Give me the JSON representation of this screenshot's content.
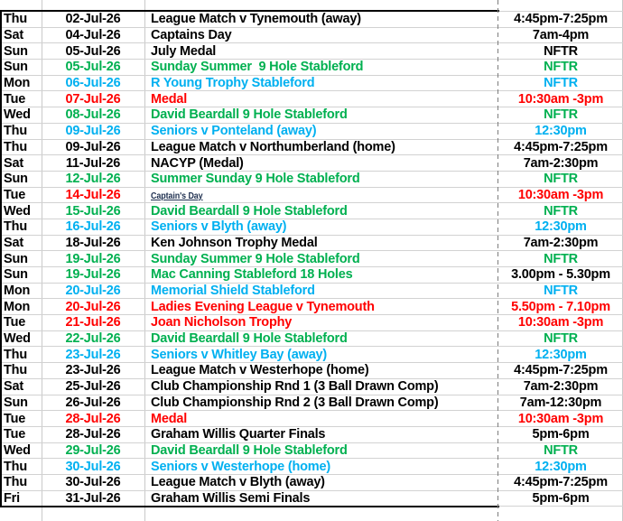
{
  "palette": {
    "black": "#000000",
    "green": "#00B050",
    "cyan": "#00B0F0",
    "red": "#FF0000",
    "link": "#1F3050"
  },
  "rows": [
    {
      "day": "Thu",
      "date": "02-Jul-26",
      "event": "League Match v Tynemouth (away)",
      "time": "4:45pm-7:25pm",
      "color": "black"
    },
    {
      "day": "Sat",
      "date": "04-Jul-26",
      "event": "Captains Day",
      "time": "7am-4pm",
      "color": "black"
    },
    {
      "day": "Sun",
      "date": "05-Jul-26",
      "event": "July Medal",
      "time": "NFTR",
      "color": "black"
    },
    {
      "day": "Sun",
      "date": "05-Jul-26",
      "event": "Sunday Summer  9 Hole Stableford",
      "time": "NFTR",
      "color": "green"
    },
    {
      "day": "Mon",
      "date": "06-Jul-26",
      "event": "R Young Trophy Stableford",
      "time": "NFTR",
      "color": "cyan"
    },
    {
      "day": "Tue",
      "date": "07-Jul-26",
      "event": "Medal",
      "time": "10:30am -3pm",
      "color": "red"
    },
    {
      "day": "Wed",
      "date": "08-Jul-26",
      "event": "David Beardall 9 Hole Stableford",
      "time": "NFTR",
      "color": "green"
    },
    {
      "day": "Thu",
      "date": "09-Jul-26",
      "event": "Seniors v Ponteland (away)",
      "time": "12:30pm",
      "color": "cyan"
    },
    {
      "day": "Thu",
      "date": "09-Jul-26",
      "event": "League Match v Northumberland (home)",
      "time": "4:45pm-7:25pm",
      "color": "black"
    },
    {
      "day": "Sat",
      "date": "11-Jul-26",
      "event": "NACYP (Medal)",
      "time": "7am-2:30pm",
      "color": "black"
    },
    {
      "day": "Sun",
      "date": "12-Jul-26",
      "event": "Summer Sunday 9 Hole Stableford",
      "time": "NFTR",
      "color": "green"
    },
    {
      "day": "Tue",
      "date": "14-Jul-26",
      "event": "Captain's Day",
      "time": "10:30am -3pm",
      "color": "red",
      "event_style": "link"
    },
    {
      "day": "Wed",
      "date": "15-Jul-26",
      "event": "David Beardall 9 Hole Stableford",
      "time": "NFTR",
      "color": "green"
    },
    {
      "day": "Thu",
      "date": "16-Jul-26",
      "event": "Seniors v Blyth (away)",
      "time": "12:30pm",
      "color": "cyan"
    },
    {
      "day": "Sat",
      "date": "18-Jul-26",
      "event": "Ken Johnson Trophy Medal",
      "time": "7am-2:30pm",
      "color": "black"
    },
    {
      "day": "Sun",
      "date": "19-Jul-26",
      "event": "Sunday Summer 9 Hole Stableford",
      "time": "NFTR",
      "color": "green"
    },
    {
      "day": "Sun",
      "date": "19-Jul-26",
      "event": "Mac Canning Stableford 18 Holes",
      "time": "3.00pm - 5.30pm",
      "color": "green",
      "time_color": "black"
    },
    {
      "day": "Mon",
      "date": "20-Jul-26",
      "event": "Memorial Shield Stableford",
      "time": "NFTR",
      "color": "cyan"
    },
    {
      "day": "Mon",
      "date": "20-Jul-26",
      "event": "Ladies Evening League v Tynemouth",
      "time": "5.50pm - 7.10pm",
      "color": "red"
    },
    {
      "day": "Tue",
      "date": "21-Jul-26",
      "event": "Joan Nicholson Trophy",
      "time": "10:30am -3pm",
      "color": "red"
    },
    {
      "day": "Wed",
      "date": "22-Jul-26",
      "event": "David Beardall 9 Hole Stableford",
      "time": "NFTR",
      "color": "green"
    },
    {
      "day": "Thu",
      "date": "23-Jul-26",
      "event": "Seniors v Whitley Bay (away)",
      "time": "12:30pm",
      "color": "cyan"
    },
    {
      "day": "Thu",
      "date": "23-Jul-26",
      "event": "League Match v Westerhope (home)",
      "time": "4:45pm-7:25pm",
      "color": "black"
    },
    {
      "day": "Sat",
      "date": "25-Jul-26",
      "event": "Club Championship Rnd 1 (3 Ball Drawn Comp)",
      "time": "7am-2:30pm",
      "color": "black"
    },
    {
      "day": "Sun",
      "date": "26-Jul-26",
      "event": "Club Championship Rnd 2 (3 Ball Drawn Comp)",
      "time": "7am-12:30pm",
      "color": "black"
    },
    {
      "day": "Tue",
      "date": "28-Jul-26",
      "event": "Medal",
      "time": "10:30am -3pm",
      "color": "red"
    },
    {
      "day": "Tue",
      "date": "28-Jul-26",
      "event": "Graham Willis Quarter Finals",
      "time": "5pm-6pm",
      "color": "black"
    },
    {
      "day": "Wed",
      "date": "29-Jul-26",
      "event": "David Beardall 9 Hole Stableford",
      "time": "NFTR",
      "color": "green"
    },
    {
      "day": "Thu",
      "date": "30-Jul-26",
      "event": "Seniors v Westerhope (home)",
      "time": "12:30pm",
      "color": "cyan"
    },
    {
      "day": "Thu",
      "date": "30-Jul-26",
      "event": "League Match v Blyth (away)",
      "time": "4:45pm-7:25pm",
      "color": "black"
    },
    {
      "day": "Fri",
      "date": "31-Jul-26",
      "event": "Graham Willis Semi Finals",
      "time": "5pm-6pm",
      "color": "black"
    }
  ]
}
